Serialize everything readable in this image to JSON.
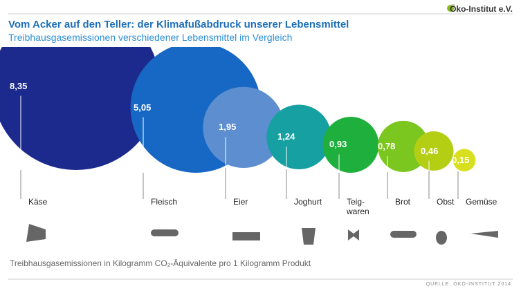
{
  "chart_data": {
    "type": "bubble",
    "title": "Vom Acker auf den Teller: der Klimafußabdruck unserer Lebensmittel",
    "subtitle": "Treibhausgasemissionen verschiedener Lebensmittel im Vergleich",
    "logo": "Öko-Institut e.V.",
    "categories": [
      "Käse",
      "Fleisch",
      "Eier",
      "Joghurt",
      "Teig-\nwaren",
      "Brot",
      "Obst",
      "Gemüse"
    ],
    "values": [
      8.35,
      5.05,
      1.95,
      1.24,
      0.93,
      0.78,
      0.46,
      0.15
    ],
    "value_labels": [
      "8,35",
      "5,05",
      "1,95",
      "1,24",
      "0,93",
      "0,78",
      "0,46",
      "0,15"
    ],
    "colors": [
      "#1b2a8c",
      "#1768c4",
      "#5d8fd0",
      "#16a0a2",
      "#1faf3c",
      "#7cc71f",
      "#b4ce14",
      "#d8df1e"
    ],
    "note": "Treibhausgasemissionen in Kilogramm CO₂-Äquivalente pro 1 Kilogramm Produkt",
    "source": "QUELLE: ÖKO-INSTITUT 2014"
  }
}
